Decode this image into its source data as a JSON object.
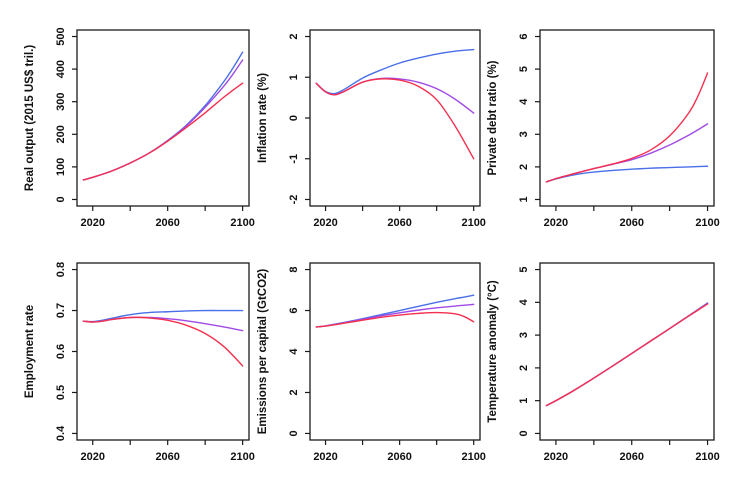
{
  "figure": {
    "background": "#ffffff",
    "panels": 6,
    "series_colors": {
      "blue": "#4a6fe8",
      "purple": "#a14ae6",
      "red": "#f5304e"
    },
    "axis_color": "#1a1a1a",
    "x_axis": {
      "range": [
        2015,
        2100
      ],
      "ticks": [
        2020,
        2040,
        2060,
        2080,
        2100
      ],
      "tick_labels": [
        "2020",
        "",
        "2060",
        "",
        "2100"
      ]
    }
  },
  "chart_data": [
    {
      "type": "line",
      "ylabel": "Real output (2015 US$ tril.)",
      "ylim": [
        0,
        500
      ],
      "yticks": [
        0,
        100,
        200,
        300,
        400,
        500
      ],
      "ytick_labels": [
        "0",
        "100",
        "200",
        "300",
        "400",
        "500"
      ],
      "x": [
        2015,
        2020,
        2030,
        2040,
        2050,
        2060,
        2070,
        2080,
        2090,
        2095,
        2100
      ],
      "series": [
        {
          "name": "blue",
          "color": "blue",
          "values": [
            60,
            68,
            87,
            112,
            142,
            181,
            228,
            288,
            362,
            405,
            452
          ]
        },
        {
          "name": "purple",
          "color": "purple",
          "values": [
            60,
            68,
            87,
            112,
            142,
            180,
            226,
            283,
            348,
            386,
            428
          ]
        },
        {
          "name": "red",
          "color": "red",
          "values": [
            60,
            68,
            87,
            112,
            142,
            179,
            221,
            266,
            314,
            336,
            357
          ]
        }
      ]
    },
    {
      "type": "line",
      "ylabel": "Inflation rate (%)",
      "ylim": [
        -2,
        2
      ],
      "yticks": [
        -2,
        -1,
        0,
        1,
        2
      ],
      "ytick_labels": [
        "-2",
        "-1",
        "0",
        "1",
        "2"
      ],
      "x": [
        2015,
        2020,
        2025,
        2030,
        2040,
        2050,
        2060,
        2070,
        2080,
        2090,
        2100
      ],
      "series": [
        {
          "name": "blue",
          "color": "blue",
          "values": [
            0.85,
            0.65,
            0.6,
            0.7,
            0.98,
            1.18,
            1.35,
            1.47,
            1.57,
            1.64,
            1.68
          ]
        },
        {
          "name": "purple",
          "color": "purple",
          "values": [
            0.85,
            0.64,
            0.57,
            0.65,
            0.88,
            0.97,
            0.96,
            0.88,
            0.72,
            0.46,
            0.12
          ]
        },
        {
          "name": "red",
          "color": "red",
          "values": [
            0.85,
            0.64,
            0.57,
            0.65,
            0.88,
            0.96,
            0.93,
            0.78,
            0.45,
            -0.2,
            -1.0
          ]
        }
      ]
    },
    {
      "type": "line",
      "ylabel": "Private debt ratio (%)",
      "ylim": [
        1,
        6
      ],
      "yticks": [
        1,
        2,
        3,
        4,
        5,
        6
      ],
      "ytick_labels": [
        "1",
        "2",
        "3",
        "4",
        "5",
        "6"
      ],
      "x": [
        2015,
        2020,
        2030,
        2040,
        2050,
        2060,
        2070,
        2080,
        2090,
        2095,
        2100
      ],
      "series": [
        {
          "name": "blue",
          "color": "blue",
          "values": [
            1.54,
            1.63,
            1.76,
            1.84,
            1.89,
            1.93,
            1.96,
            1.98,
            2.0,
            2.01,
            2.02
          ]
        },
        {
          "name": "purple",
          "color": "purple",
          "values": [
            1.54,
            1.64,
            1.8,
            1.95,
            2.08,
            2.22,
            2.42,
            2.67,
            2.97,
            3.14,
            3.32
          ]
        },
        {
          "name": "red",
          "color": "red",
          "values": [
            1.54,
            1.64,
            1.8,
            1.95,
            2.09,
            2.26,
            2.52,
            2.95,
            3.65,
            4.18,
            4.88
          ]
        }
      ]
    },
    {
      "type": "line",
      "ylabel": "Employment rate",
      "ylim": [
        0.4,
        0.8
      ],
      "yticks": [
        0.4,
        0.5,
        0.6,
        0.7,
        0.8
      ],
      "ytick_labels": [
        "0.4",
        "0.5",
        "0.6",
        "0.7",
        "0.8"
      ],
      "x": [
        2015,
        2020,
        2025,
        2030,
        2040,
        2050,
        2060,
        2070,
        2080,
        2090,
        2100
      ],
      "series": [
        {
          "name": "blue",
          "color": "blue",
          "values": [
            0.674,
            0.673,
            0.676,
            0.681,
            0.69,
            0.695,
            0.697,
            0.699,
            0.7,
            0.7,
            0.7
          ]
        },
        {
          "name": "purple",
          "color": "purple",
          "values": [
            0.674,
            0.672,
            0.674,
            0.678,
            0.683,
            0.683,
            0.68,
            0.675,
            0.668,
            0.66,
            0.651
          ]
        },
        {
          "name": "red",
          "color": "red",
          "values": [
            0.674,
            0.672,
            0.674,
            0.678,
            0.683,
            0.682,
            0.676,
            0.664,
            0.644,
            0.612,
            0.565
          ]
        }
      ]
    },
    {
      "type": "line",
      "ylabel": "Emissions per capital (GtCO2)",
      "ylim": [
        0,
        8
      ],
      "yticks": [
        0,
        2,
        4,
        6,
        8
      ],
      "ytick_labels": [
        "0",
        "2",
        "4",
        "6",
        "8"
      ],
      "x": [
        2015,
        2020,
        2030,
        2040,
        2050,
        2060,
        2070,
        2080,
        2090,
        2095,
        2100
      ],
      "series": [
        {
          "name": "blue",
          "color": "blue",
          "values": [
            5.2,
            5.25,
            5.42,
            5.6,
            5.8,
            6.0,
            6.2,
            6.4,
            6.58,
            6.66,
            6.75
          ]
        },
        {
          "name": "purple",
          "color": "purple",
          "values": [
            5.2,
            5.25,
            5.4,
            5.57,
            5.74,
            5.89,
            6.02,
            6.13,
            6.22,
            6.26,
            6.3
          ]
        },
        {
          "name": "red",
          "color": "red",
          "values": [
            5.2,
            5.24,
            5.38,
            5.53,
            5.67,
            5.78,
            5.86,
            5.9,
            5.84,
            5.7,
            5.45
          ]
        }
      ]
    },
    {
      "type": "line",
      "ylabel": "Temperature anomaly (°C)",
      "ylim": [
        0,
        5
      ],
      "yticks": [
        0,
        1,
        2,
        3,
        4,
        5
      ],
      "ytick_labels": [
        "0",
        "1",
        "2",
        "3",
        "4",
        "5"
      ],
      "x": [
        2015,
        2020,
        2030,
        2040,
        2050,
        2060,
        2070,
        2080,
        2090,
        2100
      ],
      "series": [
        {
          "name": "blue",
          "color": "blue",
          "values": [
            0.85,
            1.0,
            1.33,
            1.69,
            2.06,
            2.44,
            2.82,
            3.2,
            3.59,
            3.98
          ]
        },
        {
          "name": "purple",
          "color": "purple",
          "values": [
            0.85,
            1.0,
            1.33,
            1.69,
            2.06,
            2.44,
            2.82,
            3.2,
            3.58,
            3.96
          ]
        },
        {
          "name": "red",
          "color": "red",
          "values": [
            0.85,
            1.0,
            1.33,
            1.69,
            2.06,
            2.44,
            2.82,
            3.2,
            3.58,
            3.95
          ]
        }
      ]
    }
  ]
}
